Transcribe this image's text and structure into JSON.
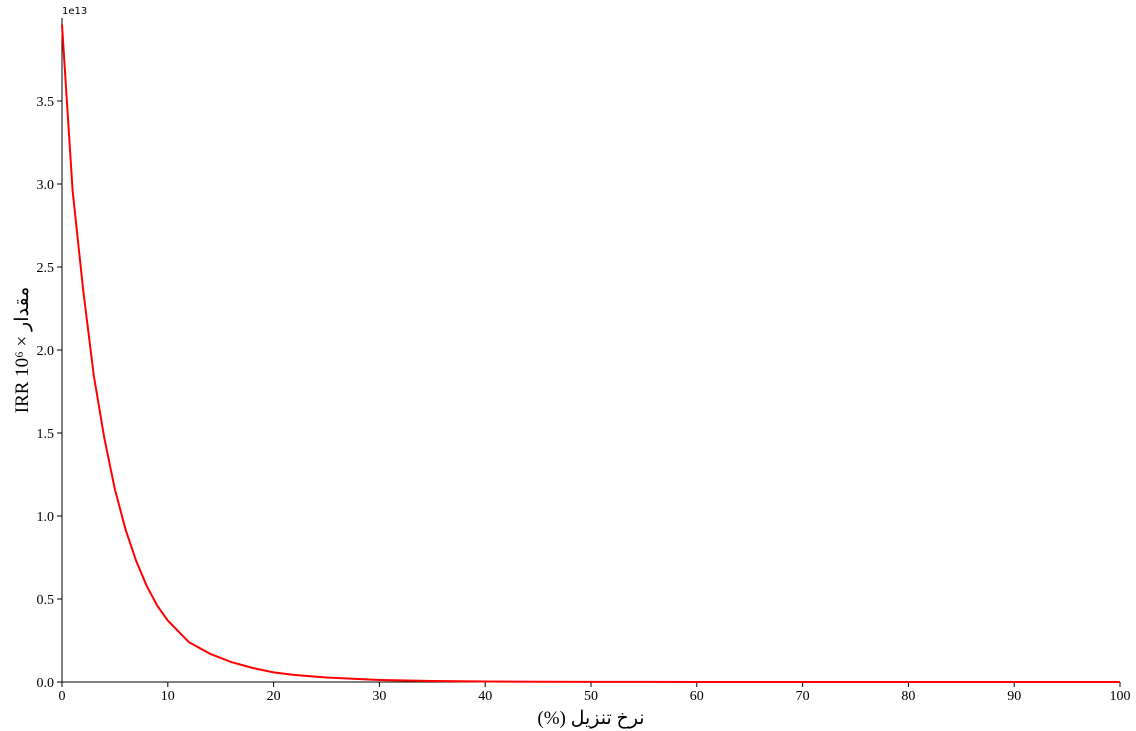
{
  "chart_data": {
    "type": "line",
    "title": "",
    "xlabel": "نرخ تنزیل (%)",
    "ylabel": "مقدار × 10⁶ IRR",
    "y_offset_label": "1e13",
    "xlim": [
      0,
      100
    ],
    "ylim": [
      0,
      4.0
    ],
    "x_ticks": [
      0,
      10,
      20,
      30,
      40,
      50,
      60,
      70,
      80,
      90,
      100
    ],
    "x_tick_labels": [
      "0",
      "10",
      "20",
      "30",
      "40",
      "50",
      "60",
      "70",
      "80",
      "90",
      "100"
    ],
    "y_ticks": [
      0,
      0.5,
      1.0,
      1.5,
      2.0,
      2.5,
      3.0,
      3.5
    ],
    "y_tick_labels": [
      "0.0",
      "0.5",
      "1.0",
      "1.5",
      "2.0",
      "2.5",
      "3.0",
      "3.5"
    ],
    "grid": false,
    "legend": "none",
    "series": [
      {
        "color": "#ff0000",
        "x": [
          0,
          1,
          2,
          3,
          4,
          5,
          6,
          7,
          8,
          9,
          10,
          12,
          14,
          16,
          18,
          20,
          22,
          25,
          30,
          35,
          40,
          45,
          50,
          55,
          60,
          65,
          70,
          75,
          80,
          85,
          90,
          95,
          100
        ],
        "y": [
          3.96,
          2.96,
          2.36,
          1.85,
          1.47,
          1.16,
          0.92,
          0.73,
          0.58,
          0.46,
          0.37,
          0.24,
          0.17,
          0.12,
          0.085,
          0.058,
          0.042,
          0.027,
          0.012,
          0.006,
          0.003,
          0.0015,
          0.0008,
          0.0004,
          0.0002,
          0.0001,
          5e-05,
          3e-05,
          2e-05,
          1e-05,
          1e-05,
          0.0,
          0.0
        ]
      }
    ]
  }
}
